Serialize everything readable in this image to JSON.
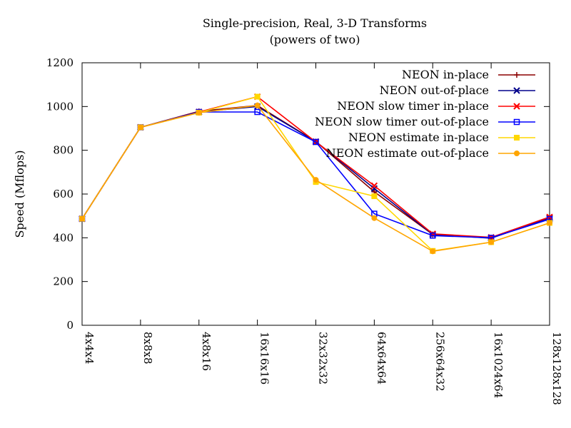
{
  "chart_data": {
    "type": "line",
    "title": "Single-precision, Real, 3-D Transforms",
    "subtitle": "(powers of two)",
    "xlabel": "",
    "ylabel": "Speed (Mflops)",
    "ylim": [
      0,
      1200
    ],
    "yticks": [
      0,
      200,
      400,
      600,
      800,
      1000,
      1200
    ],
    "categories": [
      "4x4x4",
      "8x8x8",
      "4x8x16",
      "16x16x16",
      "32x32x32",
      "64x64x64",
      "256x64x32",
      "16x1024x64",
      "128x128x128"
    ],
    "legend_position": "top-right",
    "grid": false,
    "series": [
      {
        "name": "NEON in-place",
        "color": "#8b0000",
        "marker": "plus",
        "values": [
          487,
          905,
          978,
          1005,
          840,
          610,
          415,
          400,
          490
        ]
      },
      {
        "name": "NEON out-of-place",
        "color": "#00008b",
        "marker": "cross",
        "values": [
          487,
          905,
          975,
          1000,
          840,
          625,
          415,
          398,
          490
        ]
      },
      {
        "name": "NEON slow timer in-place",
        "color": "#ff0000",
        "marker": "cross",
        "values": [
          487,
          905,
          975,
          1045,
          838,
          638,
          418,
          402,
          495
        ]
      },
      {
        "name": "NEON slow timer out-of-place",
        "color": "#0000ff",
        "marker": "square",
        "values": [
          487,
          905,
          975,
          975,
          838,
          510,
          410,
          400,
          485
        ]
      },
      {
        "name": "NEON estimate in-place",
        "color": "#ffd700",
        "marker": "filled-square",
        "values": [
          487,
          905,
          972,
          1045,
          655,
          590,
          340,
          380,
          468
        ]
      },
      {
        "name": "NEON estimate out-of-place",
        "color": "#ffa500",
        "marker": "filled-circle",
        "values": [
          487,
          905,
          972,
          1005,
          665,
          490,
          338,
          380,
          468
        ]
      }
    ]
  }
}
